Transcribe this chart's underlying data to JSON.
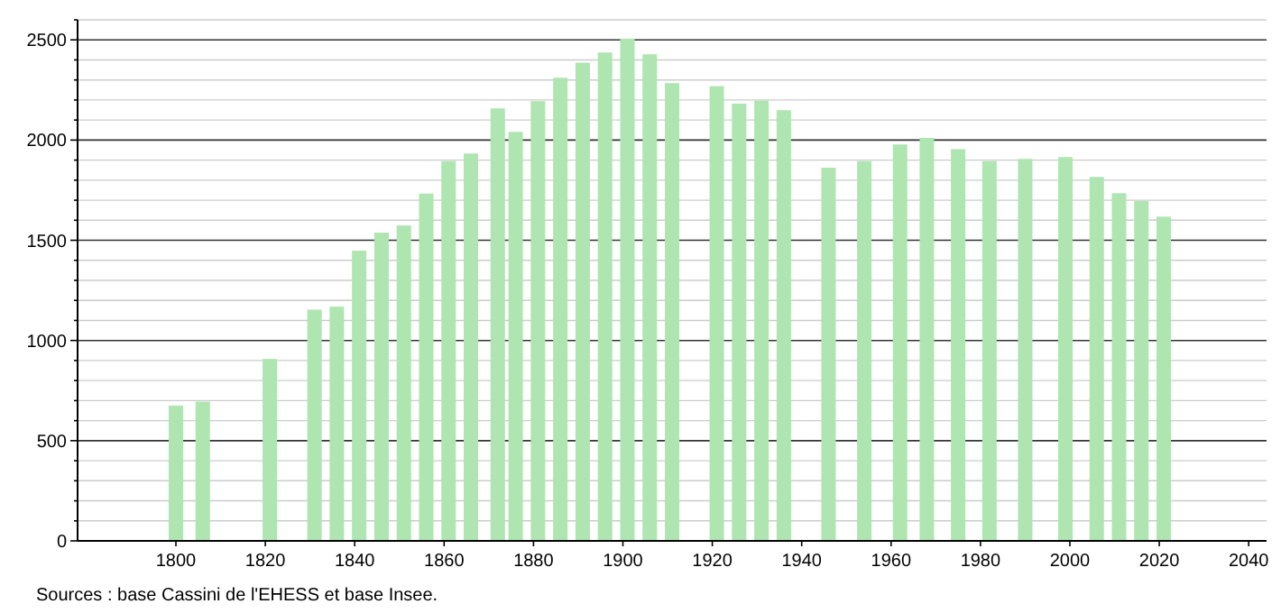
{
  "chart_data": {
    "type": "bar",
    "x": [
      1800,
      1806,
      1821,
      1831,
      1836,
      1841,
      1846,
      1851,
      1856,
      1861,
      1866,
      1872,
      1876,
      1881,
      1886,
      1891,
      1896,
      1901,
      1906,
      1911,
      1921,
      1926,
      1931,
      1936,
      1946,
      1954,
      1962,
      1968,
      1975,
      1982,
      1990,
      1999,
      2006,
      2011,
      2016,
      2021
    ],
    "values": [
      675,
      695,
      908,
      1154,
      1169,
      1448,
      1538,
      1574,
      1733,
      1895,
      1933,
      2158,
      2041,
      2194,
      2311,
      2386,
      2437,
      2506,
      2428,
      2284,
      2269,
      2182,
      2197,
      2149,
      1862,
      1895,
      1978,
      2011,
      1955,
      1895,
      1906,
      1915,
      1816,
      1735,
      1696,
      1618
    ],
    "color": "#aee5b0",
    "xlim": [
      1778,
      2044
    ],
    "xticks": [
      1800,
      1820,
      1840,
      1860,
      1880,
      1900,
      1920,
      1940,
      1960,
      1980,
      2000,
      2020,
      2040
    ],
    "ylim": [
      0,
      2600
    ],
    "yticks": [
      0,
      {
        "value": 100,
        "label": null
      },
      {
        "value": 200,
        "label": null
      },
      {
        "value": 300,
        "label": null
      },
      {
        "value": 400,
        "label": null
      },
      500,
      {
        "value": 600,
        "label": null
      },
      {
        "value": 700,
        "label": null
      },
      {
        "value": 800,
        "label": null
      },
      {
        "value": 900,
        "label": null
      },
      1000,
      {
        "value": 1100,
        "label": null
      },
      {
        "value": 1200,
        "label": null
      },
      {
        "value": 1300,
        "label": null
      },
      {
        "value": 1400,
        "label": null
      },
      1500,
      {
        "value": 1600,
        "label": null
      },
      {
        "value": 1700,
        "label": null
      },
      {
        "value": 1800,
        "label": null
      },
      {
        "value": 1900,
        "label": null
      },
      2000,
      {
        "value": 2100,
        "label": null
      },
      {
        "value": 2200,
        "label": null
      },
      {
        "value": 2300,
        "label": null
      },
      {
        "value": 2400,
        "label": null
      },
      2500,
      {
        "value": 2600,
        "label": null
      }
    ],
    "grid": "y",
    "annotations": [
      "Sources : base Cassini de l'EHESS et base Insee."
    ]
  }
}
